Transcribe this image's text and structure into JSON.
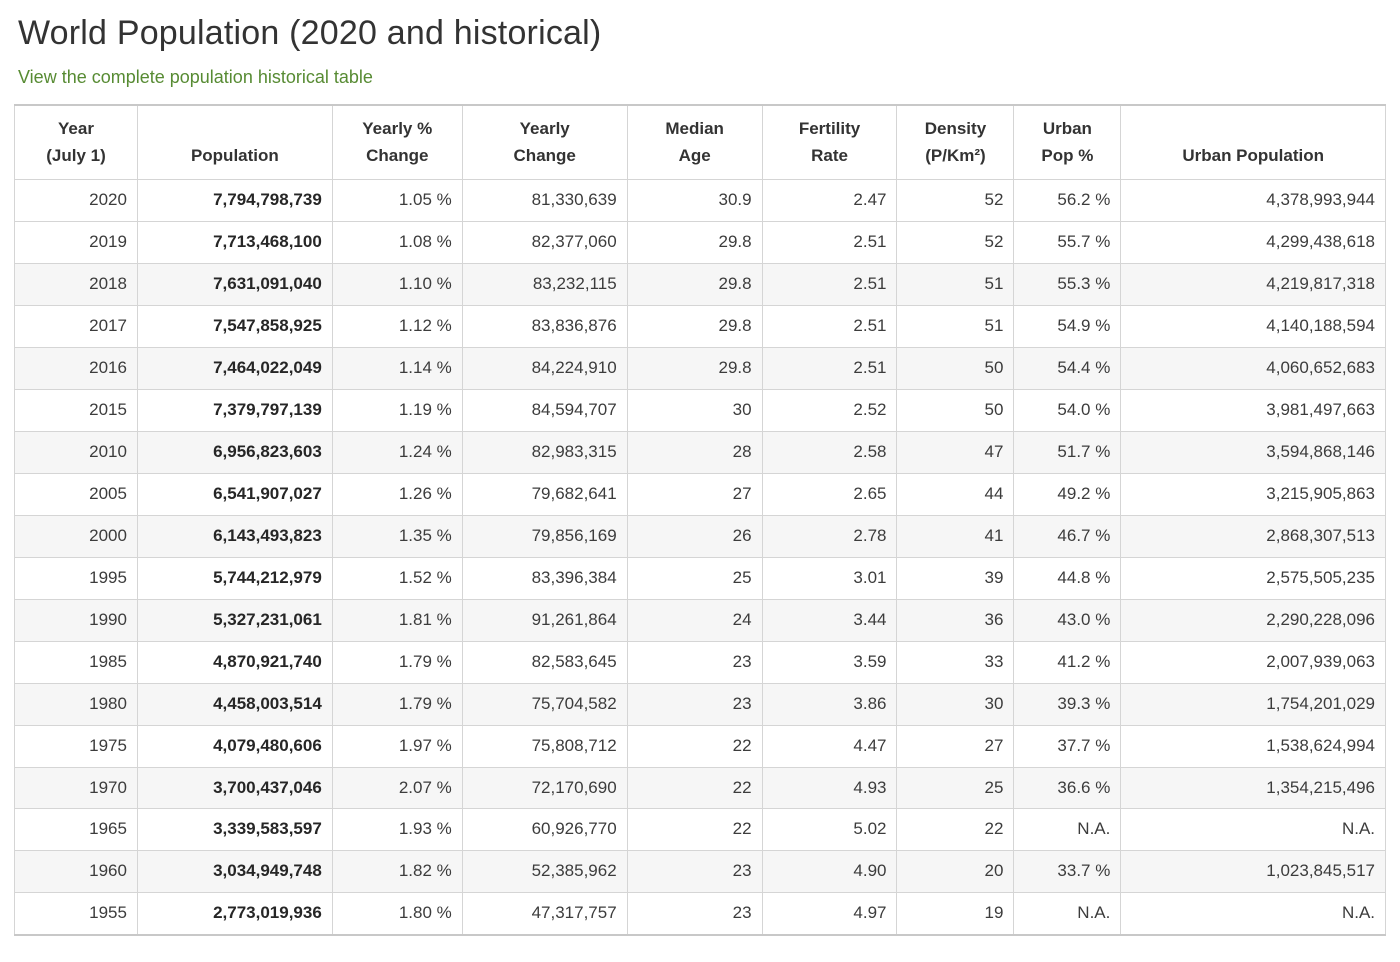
{
  "page": {
    "title": "World Population (2020 and historical)",
    "link_label": "View the complete population historical table"
  },
  "colors": {
    "link_green": "#578b33",
    "stripe_gray": "#f6f6f6",
    "border_gray": "#d5d5d5"
  },
  "table": {
    "column_keys": [
      "year",
      "population",
      "yearly-pct-change",
      "yearly-change",
      "median-age",
      "fertility-rate",
      "density",
      "urban-pop-pct",
      "urban-population"
    ],
    "headers": [
      "Year\n(July 1)",
      "Population",
      "Yearly %\nChange",
      "Yearly\nChange",
      "Median\nAge",
      "Fertility\nRate",
      "Density\n(P/Km²)",
      "Urban\nPop %",
      "Urban Population"
    ],
    "rows": [
      [
        "2020",
        "7,794,798,739",
        "1.05 %",
        "81,330,639",
        "30.9",
        "2.47",
        "52",
        "56.2 %",
        "4,378,993,944"
      ],
      [
        "2019",
        "7,713,468,100",
        "1.08 %",
        "82,377,060",
        "29.8",
        "2.51",
        "52",
        "55.7 %",
        "4,299,438,618"
      ],
      [
        "2018",
        "7,631,091,040",
        "1.10 %",
        "83,232,115",
        "29.8",
        "2.51",
        "51",
        "55.3 %",
        "4,219,817,318"
      ],
      [
        "2017",
        "7,547,858,925",
        "1.12 %",
        "83,836,876",
        "29.8",
        "2.51",
        "51",
        "54.9 %",
        "4,140,188,594"
      ],
      [
        "2016",
        "7,464,022,049",
        "1.14 %",
        "84,224,910",
        "29.8",
        "2.51",
        "50",
        "54.4 %",
        "4,060,652,683"
      ],
      [
        "2015",
        "7,379,797,139",
        "1.19 %",
        "84,594,707",
        "30",
        "2.52",
        "50",
        "54.0 %",
        "3,981,497,663"
      ],
      [
        "2010",
        "6,956,823,603",
        "1.24 %",
        "82,983,315",
        "28",
        "2.58",
        "47",
        "51.7 %",
        "3,594,868,146"
      ],
      [
        "2005",
        "6,541,907,027",
        "1.26 %",
        "79,682,641",
        "27",
        "2.65",
        "44",
        "49.2 %",
        "3,215,905,863"
      ],
      [
        "2000",
        "6,143,493,823",
        "1.35 %",
        "79,856,169",
        "26",
        "2.78",
        "41",
        "46.7 %",
        "2,868,307,513"
      ],
      [
        "1995",
        "5,744,212,979",
        "1.52 %",
        "83,396,384",
        "25",
        "3.01",
        "39",
        "44.8 %",
        "2,575,505,235"
      ],
      [
        "1990",
        "5,327,231,061",
        "1.81 %",
        "91,261,864",
        "24",
        "3.44",
        "36",
        "43.0 %",
        "2,290,228,096"
      ],
      [
        "1985",
        "4,870,921,740",
        "1.79 %",
        "82,583,645",
        "23",
        "3.59",
        "33",
        "41.2 %",
        "2,007,939,063"
      ],
      [
        "1980",
        "4,458,003,514",
        "1.79 %",
        "75,704,582",
        "23",
        "3.86",
        "30",
        "39.3 %",
        "1,754,201,029"
      ],
      [
        "1975",
        "4,079,480,606",
        "1.97 %",
        "75,808,712",
        "22",
        "4.47",
        "27",
        "37.7 %",
        "1,538,624,994"
      ],
      [
        "1970",
        "3,700,437,046",
        "2.07 %",
        "72,170,690",
        "22",
        "4.93",
        "25",
        "36.6 %",
        "1,354,215,496"
      ],
      [
        "1965",
        "3,339,583,597",
        "1.93 %",
        "60,926,770",
        "22",
        "5.02",
        "22",
        "N.A.",
        "N.A."
      ],
      [
        "1960",
        "3,034,949,748",
        "1.82 %",
        "52,385,962",
        "23",
        "4.90",
        "20",
        "33.7 %",
        "1,023,845,517"
      ],
      [
        "1955",
        "2,773,019,936",
        "1.80 %",
        "47,317,757",
        "23",
        "4.97",
        "19",
        "N.A.",
        "N.A."
      ]
    ]
  }
}
